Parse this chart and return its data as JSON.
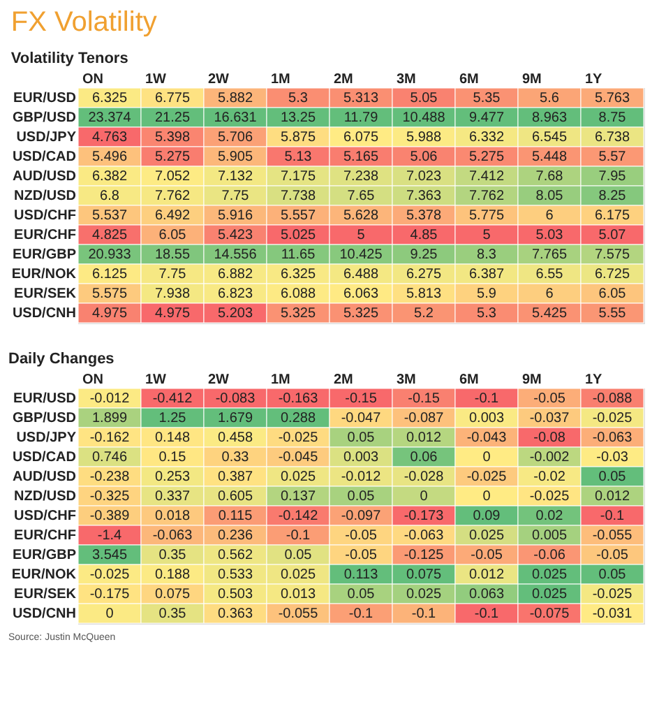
{
  "chart_data": [
    {
      "type": "heatmap",
      "title": "FX Volatility",
      "subtitle": "Volatility Tenors",
      "data_labels": true,
      "categories": [
        "ON",
        "1W",
        "2W",
        "1M",
        "2M",
        "3M",
        "6M",
        "9M",
        "1Y"
      ],
      "y_categories": [
        "EUR/USD",
        "GBP/USD",
        "USD/JPY",
        "USD/CAD",
        "AUD/USD",
        "NZD/USD",
        "USD/CHF",
        "EUR/CHF",
        "EUR/GBP",
        "EUR/NOK",
        "EUR/SEK",
        "USD/CNH"
      ],
      "cells": [
        [
          6.325,
          6.775,
          5.882,
          5.3,
          5.313,
          5.05,
          5.35,
          5.6,
          5.763
        ],
        [
          23.374,
          21.25,
          16.631,
          13.25,
          11.79,
          10.488,
          9.477,
          8.963,
          8.75
        ],
        [
          4.763,
          5.398,
          5.706,
          5.875,
          6.075,
          5.988,
          6.332,
          6.545,
          6.738
        ],
        [
          5.496,
          5.275,
          5.905,
          5.13,
          5.165,
          5.06,
          5.275,
          5.448,
          5.57
        ],
        [
          6.382,
          7.052,
          7.132,
          7.175,
          7.238,
          7.023,
          7.412,
          7.68,
          7.95
        ],
        [
          6.8,
          7.762,
          7.75,
          7.738,
          7.65,
          7.363,
          7.762,
          8.05,
          8.25
        ],
        [
          5.537,
          6.492,
          5.916,
          5.557,
          5.628,
          5.378,
          5.775,
          6,
          6.175
        ],
        [
          4.825,
          6.05,
          5.423,
          5.025,
          5,
          4.85,
          5,
          5.03,
          5.07
        ],
        [
          20.933,
          18.55,
          14.556,
          11.65,
          10.425,
          9.25,
          8.3,
          7.765,
          7.575
        ],
        [
          6.125,
          7.75,
          6.882,
          6.325,
          6.488,
          6.275,
          6.387,
          6.55,
          6.725
        ],
        [
          5.575,
          7.938,
          6.823,
          6.088,
          6.063,
          5.813,
          5.9,
          6,
          6.05
        ],
        [
          4.975,
          4.975,
          5.203,
          5.325,
          5.325,
          5.2,
          5.3,
          5.425,
          5.55
        ]
      ]
    },
    {
      "type": "heatmap",
      "title": "Daily Changes",
      "data_labels": true,
      "categories": [
        "ON",
        "1W",
        "2W",
        "1M",
        "2M",
        "3M",
        "6M",
        "9M",
        "1Y"
      ],
      "y_categories": [
        "EUR/USD",
        "GBP/USD",
        "USD/JPY",
        "USD/CAD",
        "AUD/USD",
        "NZD/USD",
        "USD/CHF",
        "EUR/CHF",
        "EUR/GBP",
        "EUR/NOK",
        "EUR/SEK",
        "USD/CNH"
      ],
      "cells": [
        [
          -0.012,
          -0.412,
          -0.083,
          -0.163,
          -0.15,
          -0.15,
          -0.1,
          -0.05,
          -0.088
        ],
        [
          1.899,
          1.25,
          1.679,
          0.288,
          -0.047,
          -0.087,
          0.003,
          -0.037,
          -0.025
        ],
        [
          -0.162,
          0.148,
          0.458,
          -0.025,
          0.05,
          0.012,
          -0.043,
          -0.08,
          -0.063
        ],
        [
          0.746,
          0.15,
          0.33,
          -0.045,
          0.003,
          0.06,
          0,
          -0.002,
          -0.03
        ],
        [
          -0.238,
          0.253,
          0.387,
          0.025,
          -0.012,
          -0.028,
          -0.025,
          -0.02,
          0.05
        ],
        [
          -0.325,
          0.337,
          0.605,
          0.137,
          0.05,
          0,
          0,
          -0.025,
          0.012
        ],
        [
          -0.389,
          0.018,
          0.115,
          -0.142,
          -0.097,
          -0.173,
          0.09,
          0.02,
          -0.1
        ],
        [
          -1.4,
          -0.063,
          0.236,
          -0.1,
          -0.05,
          -0.063,
          0.025,
          0.005,
          -0.055
        ],
        [
          3.545,
          0.35,
          0.562,
          0.05,
          -0.05,
          -0.125,
          -0.05,
          -0.06,
          -0.05
        ],
        [
          -0.025,
          0.188,
          0.533,
          0.025,
          0.113,
          0.075,
          0.012,
          0.025,
          0.05
        ],
        [
          -0.175,
          0.075,
          0.503,
          0.013,
          0.05,
          0.025,
          0.063,
          0.025,
          -0.025
        ],
        [
          0,
          0.35,
          0.363,
          -0.055,
          -0.1,
          -0.1,
          -0.1,
          -0.075,
          -0.031
        ]
      ],
      "annotations": [
        "Source: Justin McQueen"
      ]
    }
  ]
}
